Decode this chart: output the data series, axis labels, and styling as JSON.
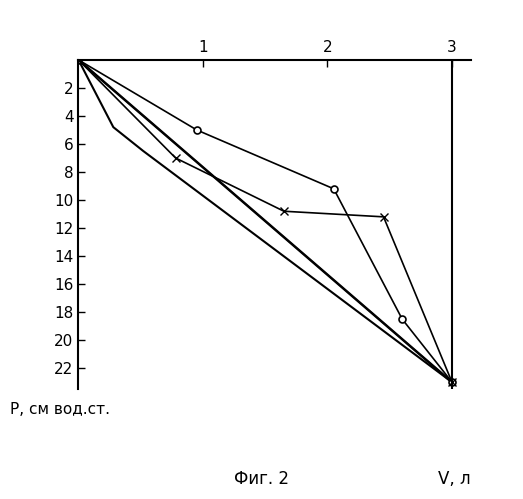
{
  "title": "Фиг. 2",
  "xlabel": "V, л",
  "ylabel": "Р, см вод.ст.",
  "xlim": [
    0,
    3.15
  ],
  "ylim": [
    23.5,
    0
  ],
  "xticks": [
    1,
    2,
    3
  ],
  "yticks": [
    2,
    4,
    6,
    8,
    10,
    12,
    14,
    16,
    18,
    20,
    22
  ],
  "line_straight1": {
    "x": [
      0,
      3.0
    ],
    "y": [
      0,
      23.0
    ],
    "linewidth": 1.8
  },
  "line_straight2": {
    "x": [
      0,
      3.0
    ],
    "y": [
      0,
      23.0
    ],
    "linewidth": 1.0
  },
  "line_kinked": {
    "x": [
      0,
      0.28,
      0.52,
      3.0
    ],
    "y": [
      0,
      4.8,
      6.5,
      23.0
    ],
    "linewidth": 1.5
  },
  "line_circle": {
    "x": [
      0,
      0.95,
      2.05,
      2.6,
      3.0
    ],
    "y": [
      0,
      5.0,
      9.2,
      18.5,
      23.0
    ],
    "linewidth": 1.2,
    "marker": "o",
    "markersize": 5
  },
  "line_cross": {
    "x": [
      0,
      0.78,
      1.65,
      2.45,
      3.0
    ],
    "y": [
      0,
      7.0,
      10.8,
      11.2,
      23.0
    ],
    "linewidth": 1.2,
    "marker": "x",
    "markersize": 6
  }
}
